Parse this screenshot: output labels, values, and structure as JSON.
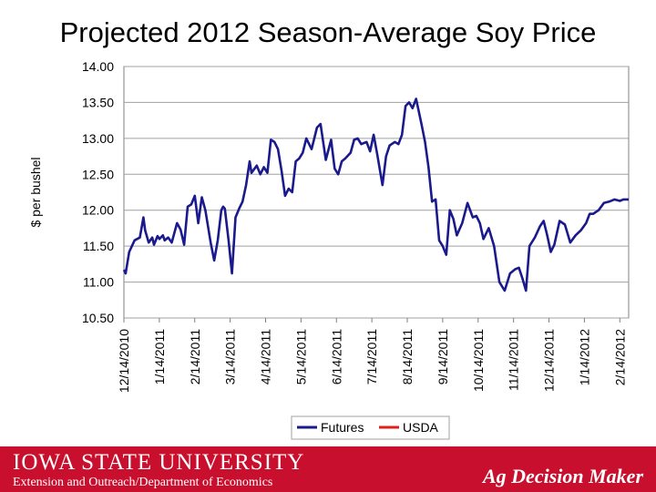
{
  "slide": {
    "title": "Projected 2012 Season-Average Soy Price"
  },
  "footer": {
    "university": "IOWA STATE UNIVERSITY",
    "department": "Extension and Outreach/Department of Economics",
    "brand": "Ag Decision Maker"
  },
  "colors": {
    "futures": "#1a1a8c",
    "usda": "#e0201b",
    "footer_bg": "#c8102e"
  },
  "chart_data": {
    "type": "line",
    "title": "Projected 2012 Season-Average Soy Price",
    "xlabel": "",
    "ylabel": "$ per bushel",
    "ylim": [
      10.5,
      14.0
    ],
    "y_ticks": [
      "10.50",
      "11.00",
      "11.50",
      "12.00",
      "12.50",
      "13.00",
      "13.50",
      "14.00"
    ],
    "x_ticks": [
      "12/14/2010",
      "1/14/2011",
      "2/14/2011",
      "3/14/2011",
      "4/14/2011",
      "5/14/2011",
      "6/14/2011",
      "7/14/2011",
      "8/14/2011",
      "9/14/2011",
      "10/14/2011",
      "11/14/2011",
      "12/14/2011",
      "1/14/2012",
      "2/14/2012"
    ],
    "x_range_months": [
      0,
      14.25
    ],
    "legend": {
      "position": "bottom",
      "entries": [
        "Futures",
        "USDA"
      ]
    },
    "series": [
      {
        "name": "Futures",
        "x": [
          0.0,
          0.05,
          0.15,
          0.3,
          0.45,
          0.55,
          0.6,
          0.7,
          0.8,
          0.85,
          0.95,
          1.0,
          1.1,
          1.15,
          1.25,
          1.35,
          1.5,
          1.6,
          1.7,
          1.8,
          1.9,
          2.0,
          2.1,
          2.2,
          2.3,
          2.45,
          2.55,
          2.65,
          2.75,
          2.8,
          2.85,
          2.95,
          3.05,
          3.15,
          3.25,
          3.35,
          3.45,
          3.55,
          3.6,
          3.75,
          3.85,
          3.95,
          4.05,
          4.15,
          4.25,
          4.35,
          4.45,
          4.55,
          4.65,
          4.75,
          4.85,
          4.95,
          5.05,
          5.15,
          5.3,
          5.45,
          5.55,
          5.7,
          5.85,
          5.95,
          6.05,
          6.15,
          6.25,
          6.4,
          6.5,
          6.6,
          6.7,
          6.85,
          6.95,
          7.05,
          7.15,
          7.3,
          7.4,
          7.5,
          7.65,
          7.75,
          7.85,
          7.95,
          8.05,
          8.15,
          8.25,
          8.4,
          8.5,
          8.6,
          8.7,
          8.8,
          8.9,
          9.0,
          9.1,
          9.2,
          9.3,
          9.4,
          9.55,
          9.7,
          9.85,
          9.95,
          10.05,
          10.15,
          10.3,
          10.45,
          10.6,
          10.75,
          10.9,
          11.05,
          11.15,
          11.25,
          11.35,
          11.45,
          11.6,
          11.75,
          11.85,
          11.95,
          12.05,
          12.15,
          12.3,
          12.45,
          12.6,
          12.75,
          12.9,
          13.05,
          13.15,
          13.25,
          13.4,
          13.55,
          13.7,
          13.85,
          14.0,
          14.1,
          14.25
        ],
        "values": [
          11.17,
          11.12,
          11.42,
          11.58,
          11.62,
          11.9,
          11.72,
          11.55,
          11.62,
          11.52,
          11.64,
          11.6,
          11.65,
          11.58,
          11.62,
          11.55,
          11.82,
          11.73,
          11.52,
          12.05,
          12.08,
          12.2,
          11.82,
          12.18,
          12.0,
          11.55,
          11.3,
          11.58,
          12.0,
          12.05,
          12.02,
          11.6,
          11.12,
          11.9,
          12.02,
          12.12,
          12.35,
          12.68,
          12.52,
          12.62,
          12.5,
          12.6,
          12.52,
          12.98,
          12.95,
          12.85,
          12.55,
          12.2,
          12.3,
          12.25,
          12.68,
          12.72,
          12.8,
          13.0,
          12.85,
          13.15,
          13.2,
          12.7,
          12.98,
          12.58,
          12.5,
          12.68,
          12.72,
          12.8,
          12.98,
          13.0,
          12.92,
          12.95,
          12.82,
          13.05,
          12.78,
          12.35,
          12.75,
          12.9,
          12.95,
          12.92,
          13.05,
          13.45,
          13.5,
          13.42,
          13.55,
          13.2,
          12.95,
          12.6,
          12.12,
          12.15,
          11.58,
          11.5,
          11.38,
          12.0,
          11.88,
          11.65,
          11.82,
          12.1,
          11.9,
          11.92,
          11.82,
          11.6,
          11.75,
          11.5,
          11.0,
          10.88,
          11.12,
          11.18,
          11.2,
          11.05,
          10.88,
          11.5,
          11.62,
          11.78,
          11.85,
          11.65,
          11.42,
          11.52,
          11.85,
          11.8,
          11.55,
          11.65,
          11.72,
          11.82,
          11.95,
          11.95,
          12.0,
          12.1,
          12.12,
          12.15,
          12.13,
          12.15,
          12.15
        ]
      },
      {
        "name": "USDA",
        "x": [],
        "values": []
      }
    ]
  }
}
